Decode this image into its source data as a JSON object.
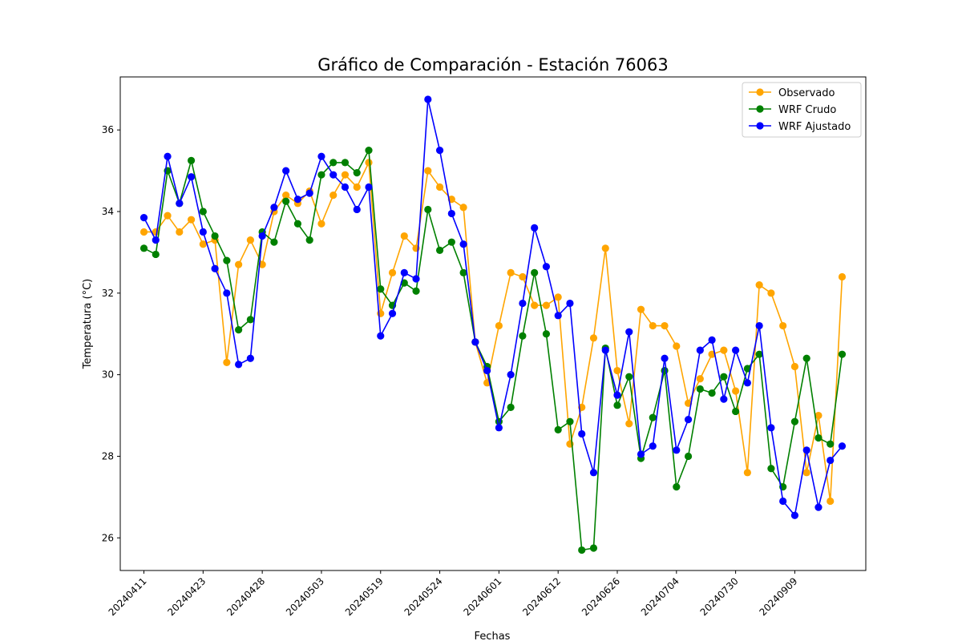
{
  "chart_data": {
    "type": "line",
    "title": "Gráfico de Comparación - Estación 76063",
    "xlabel": "Fechas",
    "ylabel": "Temperatura (°C)",
    "ylim": [
      25.2,
      37.3
    ],
    "yticks": [
      26,
      28,
      30,
      32,
      34,
      36
    ],
    "grid": false,
    "legend_position": "top-right",
    "x_index": [
      0,
      1,
      2,
      3,
      4,
      5,
      6,
      7,
      8,
      9,
      10,
      11,
      12,
      13,
      14,
      15,
      16,
      17,
      18,
      19,
      20,
      21,
      22,
      23,
      24,
      25,
      26,
      27,
      28,
      29,
      30,
      31,
      32,
      33,
      34,
      35,
      36,
      37,
      38,
      39,
      40,
      41,
      42,
      43,
      44,
      45,
      46,
      47,
      48,
      49,
      50,
      51,
      52,
      53,
      54,
      55,
      56,
      57,
      58,
      59
    ],
    "xtick_positions": [
      0,
      5,
      10,
      15,
      20,
      25,
      30,
      35,
      40,
      45,
      50,
      55
    ],
    "xtick_labels": [
      "20240411",
      "20240423",
      "20240428",
      "20240503",
      "20240519",
      "20240524",
      "20240601",
      "20240612",
      "20240626",
      "20240704",
      "20240730",
      "20240909"
    ],
    "series": [
      {
        "name": "Observado",
        "color": "#ffa500",
        "values": [
          33.5,
          33.5,
          33.9,
          33.5,
          33.8,
          33.2,
          33.3,
          30.3,
          32.7,
          33.3,
          32.7,
          34.0,
          34.4,
          34.2,
          34.5,
          33.7,
          34.4,
          34.9,
          34.6,
          35.2,
          31.5,
          32.5,
          33.4,
          33.1,
          35.0,
          34.6,
          34.3,
          34.1,
          30.8,
          29.8,
          31.2,
          32.5,
          32.4,
          31.7,
          31.7,
          31.9,
          28.3,
          29.2,
          30.9,
          33.1,
          30.1,
          28.8,
          31.6,
          31.2,
          31.2,
          30.7,
          29.3,
          29.9,
          30.5,
          30.6,
          29.6,
          27.6,
          32.2,
          32.0,
          31.2,
          30.2,
          27.6,
          29.0,
          26.9,
          32.4
        ]
      },
      {
        "name": "WRF Crudo",
        "color": "#008000",
        "values": [
          33.1,
          32.95,
          35.0,
          34.2,
          35.25,
          34.0,
          33.4,
          32.8,
          31.1,
          31.35,
          33.5,
          33.25,
          34.25,
          33.7,
          33.3,
          34.9,
          35.2,
          35.2,
          34.95,
          35.5,
          32.1,
          31.7,
          32.25,
          32.05,
          34.05,
          33.05,
          33.25,
          32.5,
          30.8,
          30.2,
          28.85,
          29.2,
          30.95,
          32.5,
          31.0,
          28.65,
          28.85,
          25.7,
          25.75,
          30.65,
          29.25,
          29.95,
          27.95,
          28.95,
          30.1,
          27.25,
          28.0,
          29.65,
          29.55,
          29.95,
          29.1,
          30.15,
          30.5,
          27.7,
          27.25,
          28.85,
          30.4,
          28.45,
          28.3,
          30.5
        ]
      },
      {
        "name": "WRF Ajustado",
        "color": "#0000ff",
        "values": [
          33.85,
          33.3,
          35.35,
          34.2,
          34.85,
          33.5,
          32.6,
          32.0,
          30.25,
          30.4,
          33.4,
          34.1,
          35.0,
          34.3,
          34.45,
          35.35,
          34.9,
          34.6,
          34.05,
          34.6,
          30.95,
          31.5,
          32.5,
          32.35,
          36.75,
          35.5,
          33.95,
          33.2,
          30.8,
          30.1,
          28.7,
          30.0,
          31.75,
          33.6,
          32.65,
          31.45,
          31.75,
          28.55,
          27.6,
          30.6,
          29.5,
          31.05,
          28.05,
          28.25,
          30.4,
          28.15,
          28.9,
          30.6,
          30.85,
          29.4,
          30.6,
          29.8,
          31.2,
          28.7,
          26.9,
          26.55,
          28.15,
          26.75,
          27.9,
          28.25
        ]
      }
    ]
  }
}
